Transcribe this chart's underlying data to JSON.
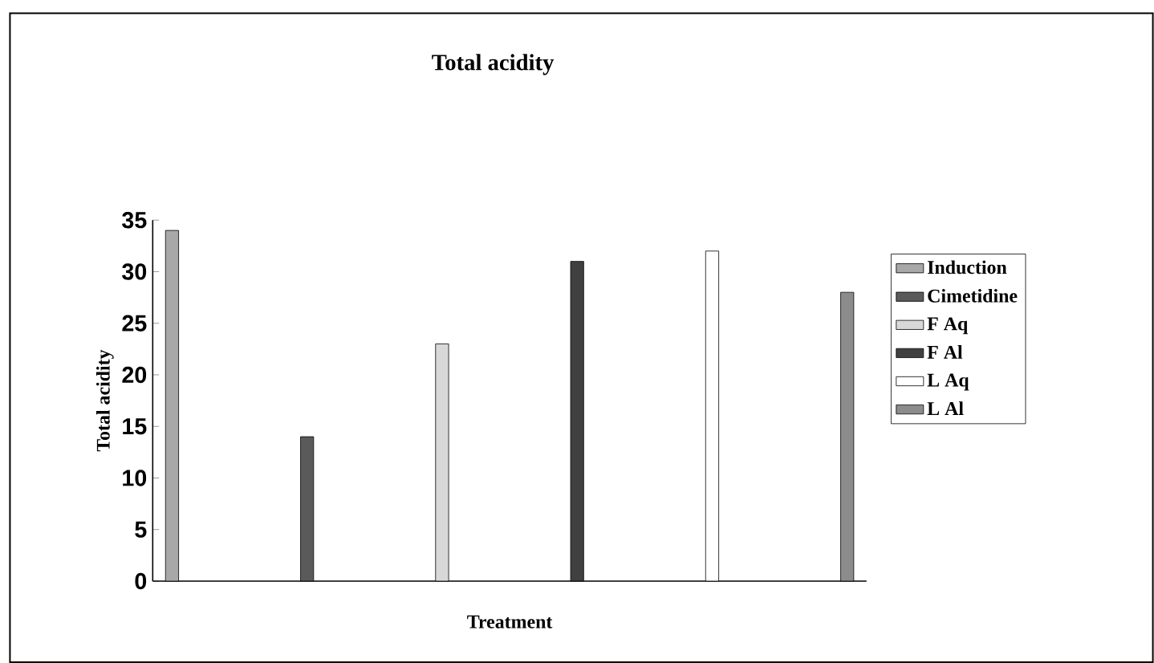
{
  "chart_data": {
    "type": "bar",
    "title": "Total acidity",
    "xlabel": "Treatment",
    "ylabel": "Total acidity",
    "categories": [
      null,
      null,
      null,
      null,
      null,
      null
    ],
    "series": [
      {
        "name": "Induction",
        "color": "#a8a8a8",
        "values": [
          34,
          null,
          null,
          null,
          null,
          null
        ]
      },
      {
        "name": "Cimetidine",
        "color": "#5a5a5a",
        "values": [
          null,
          14,
          null,
          null,
          null,
          null
        ]
      },
      {
        "name": "F Aq",
        "color": "#d8d8d8",
        "values": [
          null,
          null,
          23,
          null,
          null,
          null
        ]
      },
      {
        "name": "F Al",
        "color": "#404040",
        "values": [
          null,
          null,
          null,
          31,
          null,
          null
        ]
      },
      {
        "name": "L Aq",
        "color": "#ffffff",
        "values": [
          null,
          null,
          null,
          null,
          32,
          null
        ]
      },
      {
        "name": "L Al",
        "color": "#8c8c8c",
        "values": [
          null,
          null,
          null,
          null,
          null,
          28
        ]
      }
    ],
    "ylim": [
      0,
      35
    ],
    "yticks": [
      0,
      5,
      10,
      15,
      20,
      25,
      30,
      35
    ],
    "grid": false,
    "legend": "right"
  }
}
